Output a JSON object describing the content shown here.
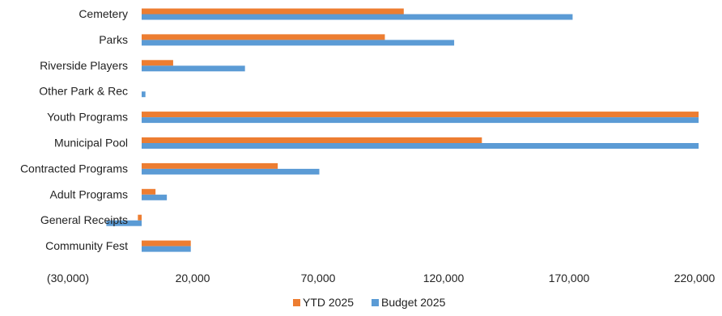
{
  "chart_data": {
    "type": "bar",
    "orientation": "horizontal",
    "categories": [
      "Cemetery",
      "Parks",
      "Riverside Players",
      "Other Park & Rec",
      "Youth Programs",
      "Municipal Pool",
      "Contracted Programs",
      "Adult Programs",
      "General Receipts",
      "Community Fest"
    ],
    "series": [
      {
        "name": "YTD 2025",
        "color": "#ED7D31",
        "values": [
          104000,
          96500,
          12500,
          0,
          221000,
          135000,
          54000,
          5500,
          -1500,
          19500
        ]
      },
      {
        "name": "Budget 2025",
        "color": "#5B9BD5",
        "values": [
          171000,
          124000,
          41000,
          1500,
          221000,
          221000,
          70500,
          10000,
          -14000,
          19500
        ]
      }
    ],
    "x_ticks": [
      "(30,000)",
      "20,000",
      "70,000",
      "120,000",
      "170,000",
      "220,000"
    ],
    "x_tick_values": [
      -30000,
      20000,
      70000,
      120000,
      170000,
      220000
    ],
    "xlim": [
      -30000,
      220000
    ],
    "grid": false,
    "legend": "bottom",
    "title": "",
    "xlabel": "",
    "ylabel": ""
  }
}
